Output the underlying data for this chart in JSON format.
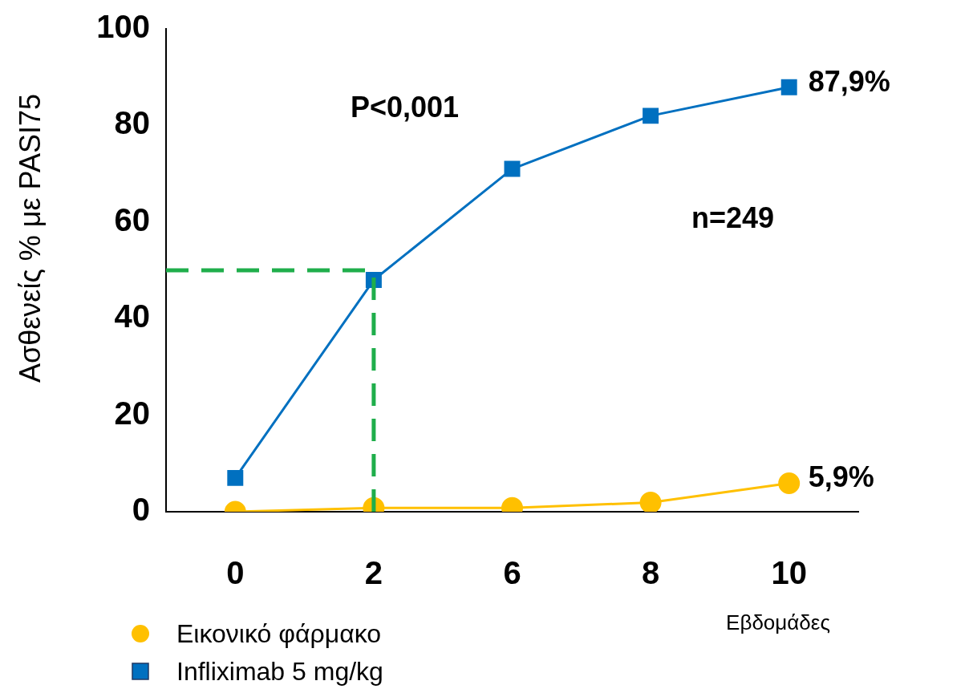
{
  "chart_data": {
    "type": "line",
    "ylabel": "Ασθενείς % με PASI75",
    "xlabel": "Εβδομάδες",
    "categories": [
      "0",
      "2",
      "6",
      "8",
      "10"
    ],
    "series": [
      {
        "name": "Εικονικό φάρμακο",
        "color": "#ffc000",
        "marker": "circle",
        "values": [
          0,
          0.8,
          0.8,
          1.9,
          5.9
        ],
        "value_labels": [
          null,
          null,
          null,
          null,
          "5,9%"
        ]
      },
      {
        "name": "Infliximab 5 mg/kg",
        "color": "#0070c0",
        "marker": "square",
        "values": [
          7,
          48,
          71,
          82,
          87.9
        ],
        "value_labels": [
          null,
          null,
          null,
          null,
          "87,9%"
        ]
      }
    ],
    "ylim": [
      0,
      100
    ],
    "yticks": [
      0,
      20,
      40,
      60,
      80,
      100
    ],
    "grid": false,
    "legend": "bottom left",
    "ref_lines": [
      {
        "axis": "y",
        "value": 50,
        "color": "#1fae4b",
        "line_style": "dashed"
      },
      {
        "axis": "x",
        "value": "2",
        "color": "#1fae4b",
        "line_style": "dashed"
      }
    ],
    "annotations": [
      "P<0,001",
      "n=249"
    ]
  }
}
